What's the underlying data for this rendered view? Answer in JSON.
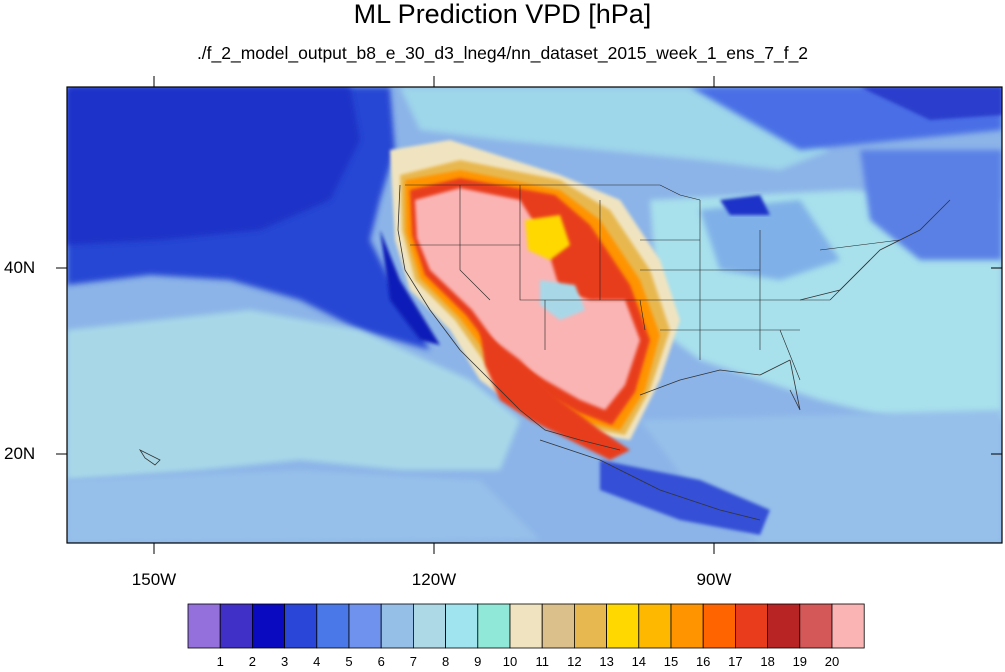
{
  "title": "ML Prediction VPD [hPa]",
  "subtitle": "./f_2_model_output_b8_e_30_d3_lneg4/nn_dataset_2015_week_1_ens_7_f_2",
  "map": {
    "type": "filled-contour map",
    "projection": "cylindrical equidistant",
    "lon_range": [
      -160,
      -60
    ],
    "lat_range": [
      10,
      59
    ],
    "lon_tick_labels": [
      "150W",
      "120W",
      "90W"
    ],
    "lon_tick_values": [
      -150,
      -120,
      -90
    ],
    "lat_tick_labels": [
      "20N",
      "40N"
    ],
    "lat_tick_values": [
      20,
      40
    ],
    "features": [
      "state-boundaries",
      "coastlines",
      "country-borders"
    ]
  },
  "colorbar": {
    "labels": [
      "1",
      "2",
      "3",
      "4",
      "5",
      "6",
      "7",
      "8",
      "9",
      "10",
      "11",
      "12",
      "13",
      "14",
      "15",
      "16",
      "17",
      "18",
      "19",
      "20"
    ],
    "colors": [
      "#9370db",
      "#4130c8",
      "#0a0ac0",
      "#2a46d8",
      "#4a78e8",
      "#6e92ee",
      "#96bfe8",
      "#add8e6",
      "#a0e4f0",
      "#90e8d8",
      "#f0e4c0",
      "#dcc08c",
      "#e8b850",
      "#ffd800",
      "#ffb800",
      "#ff9400",
      "#ff6400",
      "#e83c1c",
      "#b82424",
      "#d45858",
      "#fab4b4"
    ]
  }
}
